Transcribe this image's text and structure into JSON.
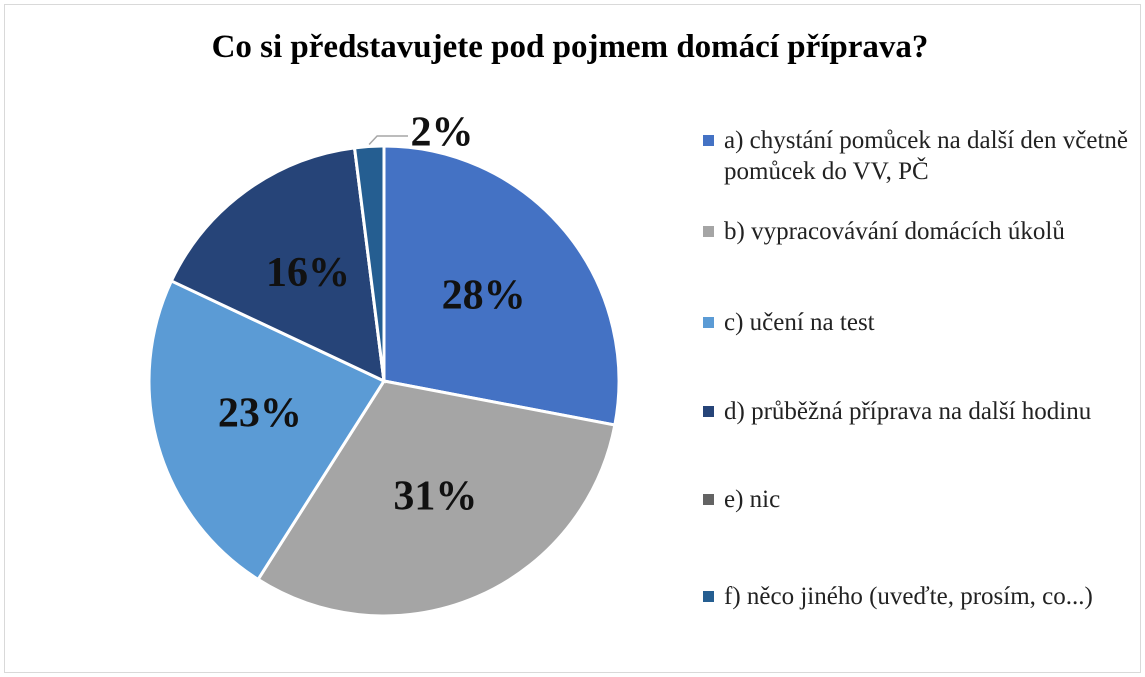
{
  "chart_data": {
    "type": "pie",
    "title": "Co si představujete pod pojmem domácí příprava?",
    "categories": [
      "a) chystání pomůcek na další den včetně pomůcek do VV, PČ",
      "b) vypracovávání domácích úkolů",
      "c) učení na test",
      "d) průběžná příprava na další hodinu",
      "e) nic",
      "f) něco jiného (uveďte, prosím, co...)"
    ],
    "values": [
      28,
      31,
      23,
      16,
      0,
      2
    ],
    "value_labels": [
      "28%",
      "31%",
      "23%",
      "16%",
      null,
      "2%"
    ],
    "colors": [
      "#4472c4",
      "#a5a5a5",
      "#5b9bd5",
      "#264478",
      "#636363",
      "#255e91"
    ],
    "legend": "right"
  }
}
